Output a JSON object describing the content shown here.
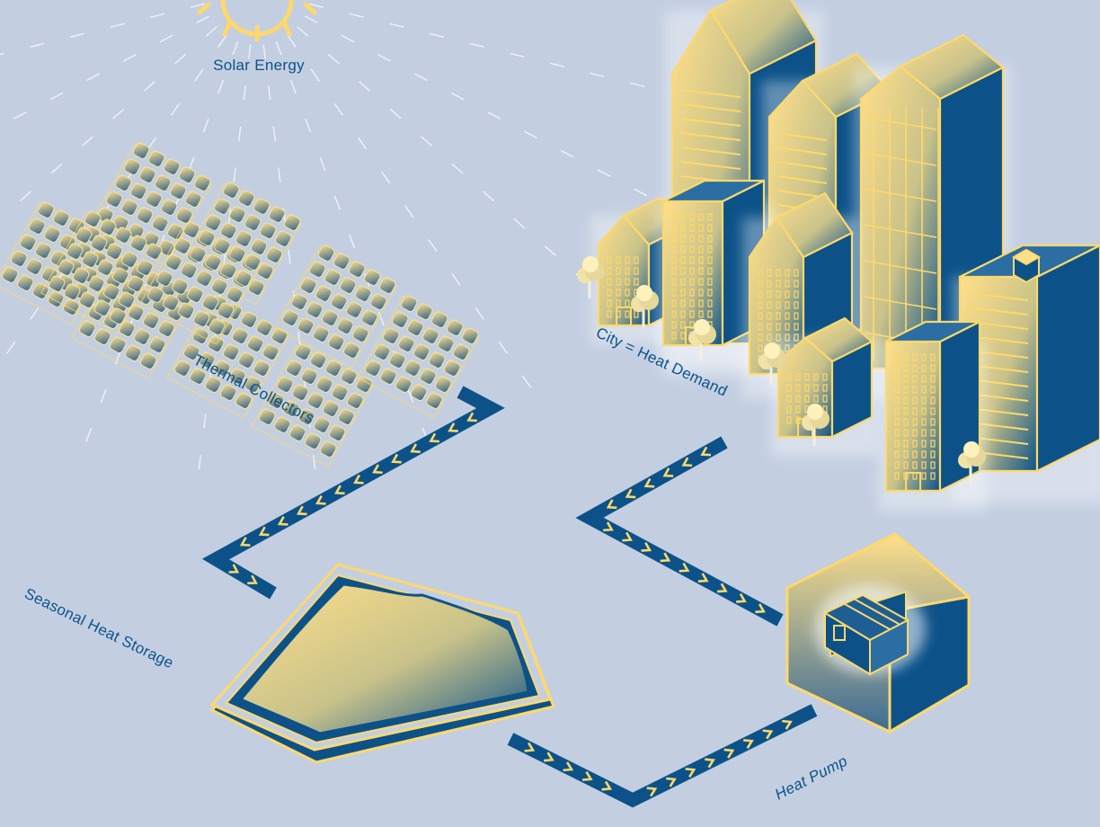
{
  "labels": {
    "solar": "Solar Energy",
    "collectors": "Thermal Collectors",
    "city": "City = Heat Demand",
    "storage": "Seasonal Heat Storage",
    "heat_pump": "Heat Pump"
  },
  "colors": {
    "background": "#c3cfe1",
    "accent_yellow": "#ffd86a",
    "deep_blue": "#0c5289"
  }
}
